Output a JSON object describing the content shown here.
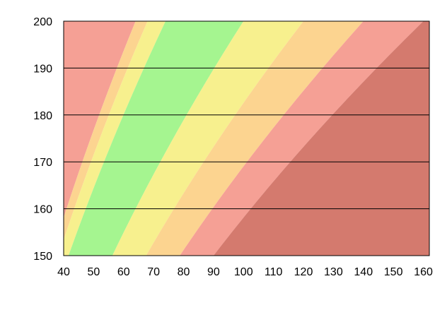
{
  "chart_data": {
    "type": "area",
    "title": "",
    "xlabel": "",
    "ylabel": "",
    "xlim": [
      40,
      162
    ],
    "ylim": [
      150,
      200
    ],
    "x_ticks": [
      40,
      50,
      60,
      70,
      80,
      90,
      100,
      110,
      120,
      130,
      140,
      150,
      160
    ],
    "y_ticks": [
      150,
      160,
      170,
      180,
      190,
      200
    ],
    "grid": "horizontal",
    "legend": "none",
    "bands": [
      {
        "color": "#f5a095",
        "lower": 0,
        "upper": 16
      },
      {
        "color": "#fcd490",
        "lower": 16,
        "upper": 17
      },
      {
        "color": "#f7f08e",
        "lower": 17,
        "upper": 18.5
      },
      {
        "color": "#a5f590",
        "lower": 18.5,
        "upper": 25
      },
      {
        "color": "#f7f08e",
        "lower": 25,
        "upper": 30
      },
      {
        "color": "#fcd490",
        "lower": 30,
        "upper": 35
      },
      {
        "color": "#f5a095",
        "lower": 35,
        "upper": 40
      },
      {
        "color": "#d47a6e",
        "lower": 40,
        "upper": 1000
      }
    ]
  }
}
